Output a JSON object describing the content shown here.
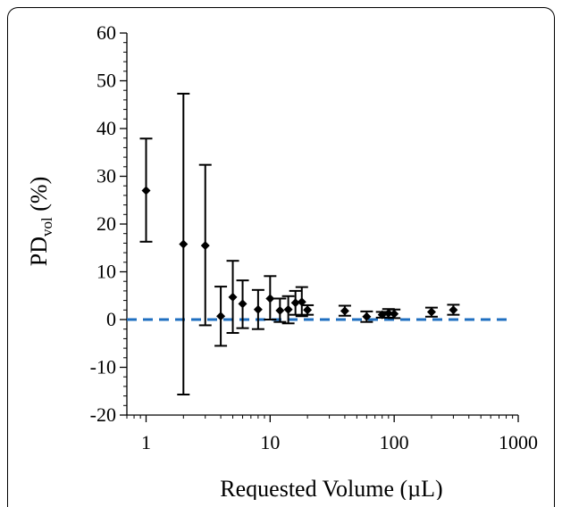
{
  "chart_data": {
    "type": "scatter",
    "title": "",
    "xlabel": "Requested Volume (µL)",
    "ylabel_main": "PD",
    "ylabel_sub": "vol",
    "ylabel_suffix": " (%)",
    "xscale": "log",
    "xlim": [
      0.7,
      1000
    ],
    "ylim": [
      -20,
      60
    ],
    "yticks": [
      -20,
      -10,
      0,
      10,
      20,
      30,
      40,
      50,
      60
    ],
    "ytick_labels": [
      "-20",
      "-10",
      "0",
      "10",
      "20",
      "30",
      "40",
      "50",
      "60"
    ],
    "xticks": [
      1,
      10,
      100,
      1000
    ],
    "xtick_labels": [
      "1",
      "10",
      "100",
      "1000"
    ],
    "grid": false,
    "series": [
      {
        "marker": "diamond",
        "points": [
          {
            "x": 1,
            "y": 27,
            "err_low": 16.3,
            "err_high": 37.9
          },
          {
            "x": 2,
            "y": 15.8,
            "err_low": -15.7,
            "err_high": 47.3
          },
          {
            "x": 3,
            "y": 15.5,
            "err_low": -1.2,
            "err_high": 32.4
          },
          {
            "x": 4,
            "y": 0.7,
            "err_low": -5.5,
            "err_high": 6.9
          },
          {
            "x": 5,
            "y": 4.7,
            "err_low": -2.8,
            "err_high": 12.3
          },
          {
            "x": 6,
            "y": 3.3,
            "err_low": -1.8,
            "err_high": 8.2
          },
          {
            "x": 8,
            "y": 2.1,
            "err_low": -2.0,
            "err_high": 6.2
          },
          {
            "x": 10,
            "y": 4.4,
            "err_low": 0.0,
            "err_high": 9.1
          },
          {
            "x": 12,
            "y": 1.9,
            "err_low": -0.5,
            "err_high": 4.4
          },
          {
            "x": 14,
            "y": 2.1,
            "err_low": -0.8,
            "err_high": 4.9
          },
          {
            "x": 16,
            "y": 3.5,
            "err_low": 1.0,
            "err_high": 6.0
          },
          {
            "x": 18,
            "y": 3.7,
            "err_low": 0.7,
            "err_high": 6.8
          },
          {
            "x": 20,
            "y": 2.0,
            "err_low": 1.0,
            "err_high": 3.0
          },
          {
            "x": 40,
            "y": 1.8,
            "err_low": 0.8,
            "err_high": 2.9
          },
          {
            "x": 60,
            "y": 0.6,
            "err_low": -0.5,
            "err_high": 1.7
          },
          {
            "x": 80,
            "y": 1.0,
            "err_low": 0.4,
            "err_high": 1.6
          },
          {
            "x": 90,
            "y": 1.3,
            "err_low": 0.4,
            "err_high": 2.2
          },
          {
            "x": 100,
            "y": 1.2,
            "err_low": 0.3,
            "err_high": 2.1
          },
          {
            "x": 200,
            "y": 1.6,
            "err_low": 0.6,
            "err_high": 2.5
          },
          {
            "x": 300,
            "y": 2.0,
            "err_low": 1.0,
            "err_high": 3.1
          }
        ]
      }
    ],
    "reference_line": {
      "y": 0,
      "style": "dashed",
      "color": "#1f6fc0"
    },
    "colors": {
      "points": "#000000",
      "reference_line": "#1f6fc0"
    }
  }
}
